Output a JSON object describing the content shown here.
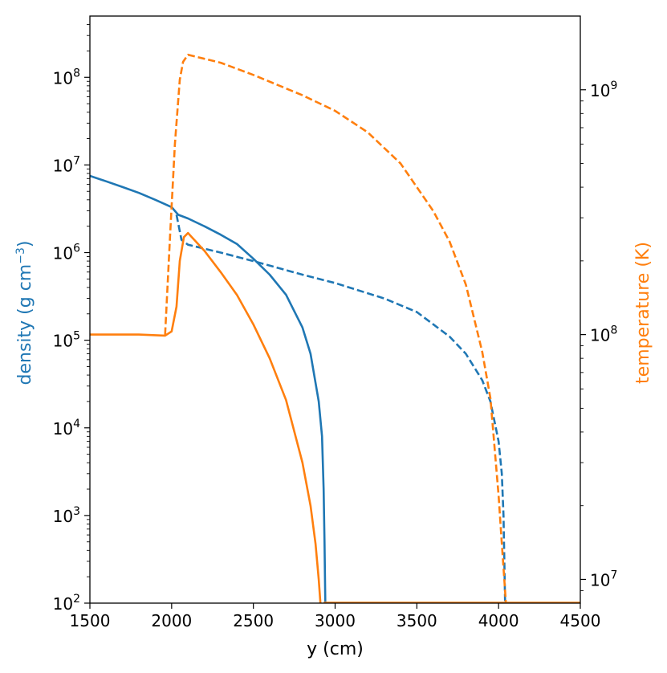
{
  "chart_data": {
    "type": "line",
    "title": "",
    "xlabel": "y (cm)",
    "xlim": [
      1500,
      4500
    ],
    "xticks": [
      1500,
      2000,
      2500,
      3000,
      3500,
      4000,
      4500
    ],
    "xtick_labels": [
      "1500",
      "2000",
      "2500",
      "3000",
      "3500",
      "4000",
      "4500"
    ],
    "y_left": {
      "label": "density (g cm",
      "label_superscript": "−3",
      "label_close": ")",
      "scale": "log",
      "ylim": [
        100,
        500000000
      ],
      "tick_bases": [
        "10",
        "10",
        "10",
        "10",
        "10",
        "10",
        "10"
      ],
      "tick_exponents": [
        "2",
        "3",
        "4",
        "5",
        "6",
        "7",
        "8"
      ],
      "tick_values": [
        100,
        1000,
        10000,
        100000,
        1000000,
        10000000,
        100000000
      ],
      "color": "#1f77b4"
    },
    "y_right": {
      "label": "temperature (K)",
      "scale": "log",
      "ylim": [
        8000000,
        2000000000
      ],
      "tick_bases": [
        "10",
        "10",
        "10"
      ],
      "tick_exponents": [
        "7",
        "8",
        "9"
      ],
      "tick_values": [
        10000000,
        100000000,
        1000000000
      ],
      "color": "#ff7f0e"
    },
    "grid": false,
    "series": [
      {
        "axis": "left",
        "color": "#1f77b4",
        "style": "solid",
        "x": [
          1500,
          1600,
          1700,
          1800,
          1900,
          2000,
          2040,
          2100,
          2200,
          2300,
          2400,
          2500,
          2600,
          2700,
          2800,
          2850,
          2900,
          2920,
          2930,
          2935,
          2940
        ],
        "y": [
          7500000,
          6500000,
          5600000,
          4800000,
          4000000,
          3300000,
          2700000,
          2450000,
          2000000,
          1600000,
          1250000,
          850000,
          560000,
          330000,
          140000,
          70000,
          20000,
          8000,
          2000,
          500,
          100
        ]
      },
      {
        "axis": "left",
        "color": "#1f77b4",
        "style": "dashed",
        "x": [
          2030,
          2060,
          2100,
          2300,
          2500,
          2800,
          3000,
          3300,
          3500,
          3700,
          3800,
          3900,
          3950,
          4000,
          4020,
          4030,
          4040
        ],
        "y": [
          2700000,
          1400000,
          1230000,
          1000000,
          800000,
          560000,
          450000,
          300000,
          210000,
          110000,
          70000,
          35000,
          20000,
          7000,
          3000,
          1000,
          100
        ]
      },
      {
        "axis": "right",
        "color": "#ff7f0e",
        "style": "solid",
        "x": [
          1500,
          1800,
          1960,
          2000,
          2030,
          2050,
          2075,
          2100,
          2200,
          2300,
          2400,
          2500,
          2600,
          2700,
          2800,
          2850,
          2880,
          2900,
          2910
        ],
        "y": [
          100000000,
          100000000,
          99000000,
          103000000,
          130000000,
          200000000,
          250000000,
          260000000,
          220000000,
          180000000,
          145000000,
          110000000,
          80000000,
          54000000,
          30000000,
          20000000,
          14000000,
          10000000,
          8000000
        ]
      },
      {
        "axis": "right",
        "color": "#ff7f0e",
        "style": "dashed",
        "x": [
          1960,
          1990,
          2020,
          2050,
          2070,
          2100,
          2300,
          2500,
          2800,
          3000,
          3200,
          3400,
          3600,
          3700,
          3800,
          3900,
          3950,
          4000,
          4020,
          4035,
          4045
        ],
        "y": [
          100000000,
          250000000,
          600000000,
          1100000000,
          1300000000,
          1390000000,
          1290000000,
          1150000000,
          950000000,
          820000000,
          670000000,
          500000000,
          320000000,
          240000000,
          160000000,
          85000000,
          55000000,
          22000000,
          14000000,
          10000000,
          8000000
        ]
      }
    ]
  }
}
